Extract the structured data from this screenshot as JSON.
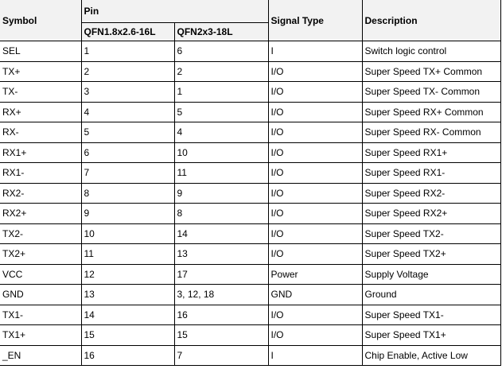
{
  "header": {
    "symbol": "Symbol",
    "pin": "Pin",
    "pkg1": "QFN1.8x2.6-16L",
    "pkg2": "QFN2x3-18L",
    "signal_type": "Signal Type",
    "description": "Description"
  },
  "rows": [
    {
      "symbol": "SEL",
      "pin1": "1",
      "pin2": "6",
      "type": "I",
      "desc": "Switch logic control"
    },
    {
      "symbol": "TX+",
      "pin1": "2",
      "pin2": "2",
      "type": "I/O",
      "desc": "Super Speed TX+ Common"
    },
    {
      "symbol": "TX-",
      "pin1": "3",
      "pin2": "1",
      "type": "I/O",
      "desc": "Super Speed TX- Common"
    },
    {
      "symbol": "RX+",
      "pin1": "4",
      "pin2": "5",
      "type": "I/O",
      "desc": "Super Speed RX+ Common"
    },
    {
      "symbol": "RX-",
      "pin1": "5",
      "pin2": "4",
      "type": "I/O",
      "desc": "Super Speed RX- Common"
    },
    {
      "symbol": "RX1+",
      "pin1": "6",
      "pin2": "10",
      "type": "I/O",
      "desc": "Super Speed RX1+"
    },
    {
      "symbol": "RX1-",
      "pin1": "7",
      "pin2": "11",
      "type": "I/O",
      "desc": "Super Speed RX1-"
    },
    {
      "symbol": "RX2-",
      "pin1": "8",
      "pin2": "9",
      "type": "I/O",
      "desc": "Super Speed RX2-"
    },
    {
      "symbol": "RX2+",
      "pin1": "9",
      "pin2": "8",
      "type": "I/O",
      "desc": "Super Speed RX2+"
    },
    {
      "symbol": "TX2-",
      "pin1": "10",
      "pin2": "14",
      "type": "I/O",
      "desc": "Super Speed TX2-"
    },
    {
      "symbol": "TX2+",
      "pin1": "11",
      "pin2": "13",
      "type": "I/O",
      "desc": "Super Speed TX2+"
    },
    {
      "symbol": "VCC",
      "pin1": "12",
      "pin2": "17",
      "type": "Power",
      "desc": "Supply Voltage"
    },
    {
      "symbol": "GND",
      "pin1": "13",
      "pin2": "3, 12, 18",
      "type": "GND",
      "desc": "Ground"
    },
    {
      "symbol": "TX1-",
      "pin1": "14",
      "pin2": "16",
      "type": "I/O",
      "desc": "Super Speed TX1-"
    },
    {
      "symbol": "TX1+",
      "pin1": "15",
      "pin2": "15",
      "type": "I/O",
      "desc": "Super Speed TX1+"
    },
    {
      "symbol": "_EN",
      "pin1": "16",
      "pin2": "7",
      "type": "I",
      "desc": "Chip Enable, Active Low"
    }
  ]
}
